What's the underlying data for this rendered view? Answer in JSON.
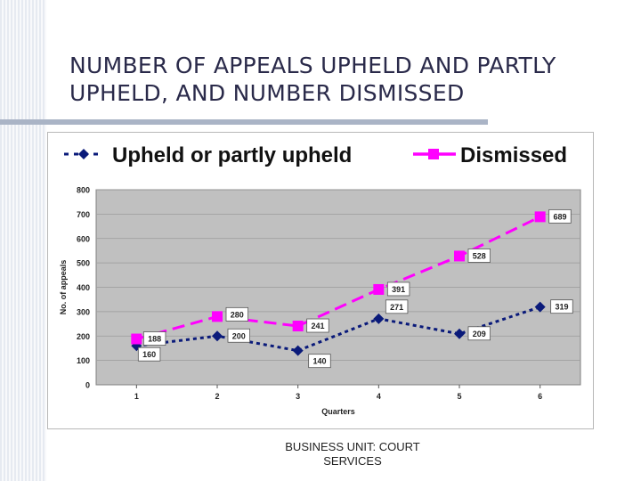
{
  "slide": {
    "title_line1": "NUMBER OF APPEALS UPHELD AND PARTLY",
    "title_line2": "UPHELD, AND NUMBER DISMISSED",
    "footer_line1": "BUSINESS UNIT:  COURT",
    "footer_line2": "SERVICES"
  },
  "chart_data": {
    "type": "line",
    "x": [
      1,
      2,
      3,
      4,
      5,
      6
    ],
    "series": [
      {
        "name": "Upheld or partly upheld",
        "values": [
          160,
          200,
          140,
          271,
          209,
          319
        ],
        "labels": [
          "160",
          "200",
          "140",
          "271",
          "209",
          "319"
        ],
        "color": "#0a1a7a",
        "marker": "diamond",
        "style": "dotted"
      },
      {
        "name": "Dismissed",
        "values": [
          188,
          280,
          241,
          391,
          528,
          689
        ],
        "labels": [
          "188",
          "280",
          "241",
          "391",
          "528",
          "689"
        ],
        "color": "#ff00ff",
        "marker": "square",
        "style": "dashed"
      }
    ],
    "xlabel": "Quarters",
    "ylabel": "No. of appeals",
    "ylim": [
      0,
      800
    ],
    "yticks": [
      0,
      100,
      200,
      300,
      400,
      500,
      600,
      700,
      800
    ],
    "grid": true,
    "plot_background": "#c0c0c0",
    "legend_position": "top"
  }
}
